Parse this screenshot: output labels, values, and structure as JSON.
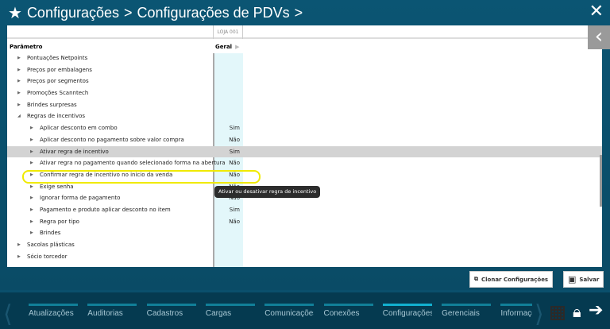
{
  "header": {
    "breadcrumb": [
      "Configurações",
      "Configurações de PDVs"
    ],
    "sep": ">"
  },
  "table": {
    "store_col": "LOJA 001",
    "param_header": "Parâmetro",
    "value_header": "Geral",
    "rows": [
      {
        "label": "Pontuações Netpoints",
        "level": 1,
        "expanded": false,
        "value": ""
      },
      {
        "label": "Preços por embalagens",
        "level": 1,
        "expanded": false,
        "value": ""
      },
      {
        "label": "Preços por segmentos",
        "level": 1,
        "expanded": false,
        "value": ""
      },
      {
        "label": "Promoções Scanntech",
        "level": 1,
        "expanded": false,
        "value": ""
      },
      {
        "label": "Brindes surpresas",
        "level": 1,
        "expanded": false,
        "value": ""
      },
      {
        "label": "Regras de incentivos",
        "level": 1,
        "expanded": true,
        "value": ""
      },
      {
        "label": "Aplicar desconto em combo",
        "level": 2,
        "expanded": false,
        "value": "Sim"
      },
      {
        "label": "Aplicar desconto no pagamento sobre valor compra",
        "level": 2,
        "expanded": false,
        "value": "Não"
      },
      {
        "label": "Ativar regra de incentivo",
        "level": 2,
        "expanded": false,
        "value": "Sim",
        "selected": true
      },
      {
        "label": "Ativar regra no pagamento quando selecionado forma na abertura",
        "level": 2,
        "expanded": false,
        "value": "Não"
      },
      {
        "label": "Confirmar regra de incentivo no inicio da venda",
        "level": 2,
        "expanded": false,
        "value": "Não"
      },
      {
        "label": "Exige senha",
        "level": 2,
        "expanded": false,
        "value": "Não"
      },
      {
        "label": "Ignorar forma de pagamento",
        "level": 2,
        "expanded": false,
        "value": "Não"
      },
      {
        "label": "Pagamento e produto aplicar desconto no item",
        "level": 2,
        "expanded": false,
        "value": "Sim"
      },
      {
        "label": "Regra por tipo",
        "level": 2,
        "expanded": false,
        "value": "Não"
      },
      {
        "label": "Brindes",
        "level": 2,
        "expanded": false,
        "value": ""
      },
      {
        "label": "Sacolas plásticas",
        "level": 1,
        "expanded": false,
        "value": ""
      },
      {
        "label": "Sócio torcedor",
        "level": 1,
        "expanded": false,
        "value": ""
      }
    ]
  },
  "tooltip": "Ativar ou desativar regra de incentivo",
  "buttons": {
    "clone": "Clonar Configurações",
    "save": "Salvar"
  },
  "nav": {
    "items": [
      "Atualizações",
      "Auditorias",
      "Cadastros",
      "Cargas",
      "Comunicações",
      "Conexões",
      "Configurações",
      "Gerenciais",
      "Informações"
    ],
    "active": "Configurações"
  },
  "colors": {
    "highlight": "#f0ea00",
    "active_tab": "#12b0cf"
  }
}
